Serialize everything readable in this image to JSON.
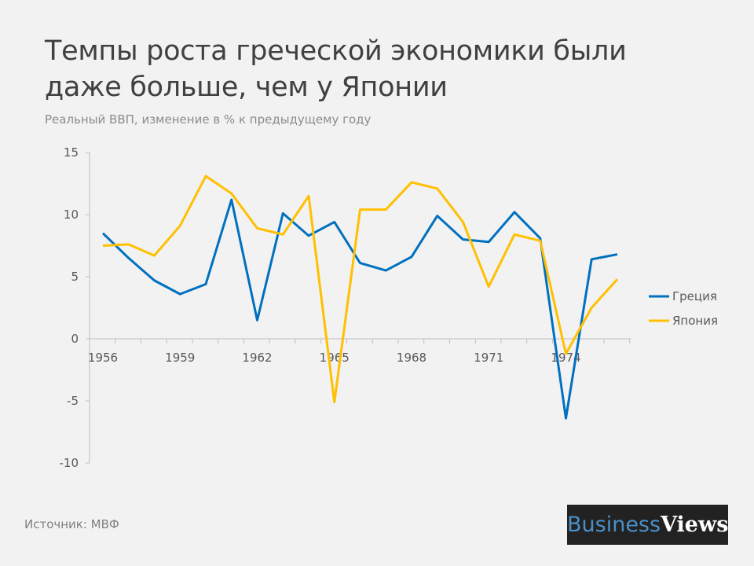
{
  "title": "Темпы роста греческой экономики были даже больше, чем у Японии",
  "subtitle": "Реальный ВВП, изменение в % к предыдущему году",
  "source": "Источник: МВФ",
  "logo": {
    "part1": "Business",
    "part2": "Views"
  },
  "chart_data": {
    "type": "line",
    "x": [
      1956,
      1957,
      1958,
      1959,
      1960,
      1961,
      1962,
      1963,
      1964,
      1965,
      1966,
      1967,
      1968,
      1969,
      1970,
      1971,
      1972,
      1973,
      1974,
      1975,
      1976
    ],
    "x_tick_labels": [
      "1956",
      "1959",
      "1962",
      "1965",
      "1968",
      "1971",
      "1974"
    ],
    "y_tick_labels": [
      "15",
      "10",
      "5",
      "0",
      "-5",
      "-10"
    ],
    "y_ticks": [
      15,
      10,
      5,
      0,
      -5,
      -10
    ],
    "ylim": [
      -10,
      15
    ],
    "grid": false,
    "legend_position": "right",
    "series": [
      {
        "name": "Греция",
        "color": "#0070c0",
        "values": [
          8.5,
          6.5,
          4.7,
          3.6,
          4.4,
          11.2,
          1.5,
          10.1,
          8.3,
          9.4,
          6.1,
          5.5,
          6.6,
          9.9,
          8.0,
          7.8,
          10.2,
          8.1,
          -6.4,
          6.4,
          6.8
        ]
      },
      {
        "name": "Япония",
        "color": "#ffc000",
        "values": [
          7.5,
          7.6,
          6.7,
          9.1,
          13.1,
          11.7,
          8.9,
          8.4,
          11.5,
          -5.1,
          10.4,
          10.4,
          12.6,
          12.1,
          9.4,
          4.2,
          8.4,
          7.9,
          -1.2,
          2.5,
          4.8
        ]
      }
    ]
  }
}
